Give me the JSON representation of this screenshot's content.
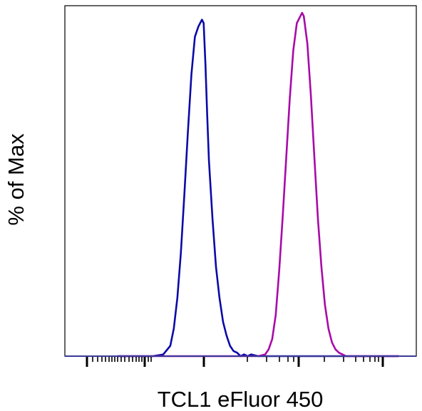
{
  "chart_data": {
    "type": "line",
    "title": "",
    "xlabel": "TCL1 eFluor 450",
    "ylabel": "% of Max",
    "xscale": "biexponential",
    "ylim": [
      0,
      100
    ],
    "tick_labels": false,
    "grid": false,
    "legend": "none",
    "series": [
      {
        "color": "#0a0aa8",
        "x": [
          0.15,
          0.2,
          0.25,
          0.28,
          0.3,
          0.31,
          0.32,
          0.33,
          0.34,
          0.35,
          0.36,
          0.37,
          0.38,
          0.385,
          0.39,
          0.395,
          0.4,
          0.405,
          0.41,
          0.42,
          0.43,
          0.44,
          0.45,
          0.46,
          0.47,
          0.48,
          0.49,
          0.5,
          0.51,
          0.52,
          0.53,
          0.55,
          0.58,
          0.65,
          0.95
        ],
        "values": [
          0,
          0,
          0,
          0.5,
          3,
          8,
          17,
          30,
          47,
          65,
          82,
          93,
          96,
          97,
          98,
          97,
          85,
          70,
          57,
          40,
          26,
          17,
          10,
          6,
          3,
          1.5,
          1,
          0,
          0.5,
          0,
          0.5,
          0,
          0,
          0,
          0
        ]
      },
      {
        "color": "#a80aa8",
        "x": [
          0.15,
          0.5,
          0.55,
          0.57,
          0.58,
          0.59,
          0.6,
          0.61,
          0.62,
          0.63,
          0.64,
          0.65,
          0.66,
          0.67,
          0.675,
          0.68,
          0.69,
          0.7,
          0.71,
          0.72,
          0.73,
          0.74,
          0.75,
          0.76,
          0.77,
          0.78,
          0.79,
          0.8,
          0.82,
          0.95
        ],
        "values": [
          0,
          0,
          0,
          0.5,
          2,
          5,
          12,
          25,
          41,
          58,
          75,
          89,
          97,
          99,
          100,
          99,
          91,
          76,
          58,
          40,
          26,
          15,
          8,
          4,
          2,
          1,
          0.5,
          0,
          0,
          0
        ]
      }
    ]
  }
}
